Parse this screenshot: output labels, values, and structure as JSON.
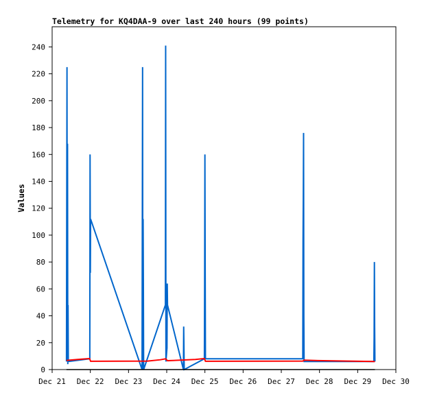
{
  "chart_data": {
    "type": "line",
    "title": "Telemetry for KQ4DAA-9 over last 240 hours (99 points)",
    "ylabel": "Values",
    "xlabel": "",
    "ylim": [
      0,
      255
    ],
    "xlim": [
      "2023-12-21",
      "2023-12-30"
    ],
    "yticks": [
      0,
      20,
      40,
      60,
      80,
      100,
      120,
      140,
      160,
      180,
      200,
      220,
      240
    ],
    "xticks": [
      "Dec 21",
      "Dec 22",
      "Dec 23",
      "Dec 24",
      "Dec 25",
      "Dec 26",
      "Dec 27",
      "Dec 28",
      "Dec 29",
      "Dec 30"
    ],
    "x_tick_dates": [
      "2023-12-21",
      "2023-12-22",
      "2023-12-23",
      "2023-12-24",
      "2023-12-25",
      "2023-12-26",
      "2023-12-27",
      "2023-12-28",
      "2023-12-29",
      "2023-12-30"
    ],
    "grid": false,
    "series": [
      {
        "color": "#0066cc",
        "points": [
          [
            "2023-12-21 09:00",
            6
          ],
          [
            "2023-12-21 09:20",
            225
          ],
          [
            "2023-12-21 09:30",
            8
          ],
          [
            "2023-12-21 09:40",
            168
          ],
          [
            "2023-12-21 09:50",
            4
          ],
          [
            "2023-12-21 10:00",
            48
          ],
          [
            "2023-12-21 10:10",
            6
          ],
          [
            "2023-12-21 23:40",
            8
          ],
          [
            "2023-12-21 23:50",
            160
          ],
          [
            "2023-12-22 00:00",
            72
          ],
          [
            "2023-12-22 00:10",
            112
          ],
          [
            "2023-12-23 08:30",
            0
          ],
          [
            "2023-12-23 08:50",
            225
          ],
          [
            "2023-12-23 09:00",
            0
          ],
          [
            "2023-12-23 09:10",
            112
          ],
          [
            "2023-12-23 09:20",
            64
          ],
          [
            "2023-12-23 09:30",
            0
          ],
          [
            "2023-12-23 23:10",
            48
          ],
          [
            "2023-12-23 23:20",
            241
          ],
          [
            "2023-12-23 23:30",
            6
          ],
          [
            "2023-12-24 00:10",
            16
          ],
          [
            "2023-12-24 00:20",
            64
          ],
          [
            "2023-12-24 00:30",
            48
          ],
          [
            "2023-12-24 10:30",
            0
          ],
          [
            "2023-12-24 10:40",
            32
          ],
          [
            "2023-12-24 10:50",
            16
          ],
          [
            "2023-12-24 11:00",
            0
          ],
          [
            "2023-12-24 23:40",
            8
          ],
          [
            "2023-12-24 23:50",
            64
          ],
          [
            "2023-12-25 00:00",
            160
          ],
          [
            "2023-12-25 00:10",
            80
          ],
          [
            "2023-12-25 00:20",
            8
          ],
          [
            "2023-12-27 13:30",
            8
          ],
          [
            "2023-12-27 13:40",
            96
          ],
          [
            "2023-12-27 13:50",
            128
          ],
          [
            "2023-12-27 14:00",
            176
          ],
          [
            "2023-12-27 14:10",
            40
          ],
          [
            "2023-12-27 14:20",
            6
          ],
          [
            "2023-12-29 10:10",
            6
          ],
          [
            "2023-12-29 10:20",
            24
          ],
          [
            "2023-12-29 10:30",
            80
          ],
          [
            "2023-12-29 10:40",
            32
          ],
          [
            "2023-12-29 10:50",
            6
          ]
        ]
      },
      {
        "color": "#ff0000",
        "points": [
          [
            "2023-12-21 09:00",
            6.8
          ],
          [
            "2023-12-21 16:00",
            7.5
          ],
          [
            "2023-12-21 23:30",
            8.2
          ],
          [
            "2023-12-22 00:10",
            6.2
          ],
          [
            "2023-12-23 12:00",
            6.3
          ],
          [
            "2023-12-23 20:00",
            7.3
          ],
          [
            "2023-12-23 23:20",
            8.0
          ],
          [
            "2023-12-24 00:30",
            6.6
          ],
          [
            "2023-12-24 18:00",
            7.5
          ],
          [
            "2023-12-24 23:40",
            8.2
          ],
          [
            "2023-12-25 00:20",
            6.2
          ],
          [
            "2023-12-27 13:30",
            6.3
          ],
          [
            "2023-12-27 14:20",
            7.0
          ],
          [
            "2023-12-27 23:00",
            6.7
          ],
          [
            "2023-12-28 18:00",
            6.3
          ],
          [
            "2023-12-29 10:50",
            6.0
          ]
        ]
      },
      {
        "color": "#000000",
        "points": [
          [
            "2023-12-21 09:00",
            0
          ],
          [
            "2023-12-29 10:50",
            0
          ]
        ]
      }
    ]
  }
}
